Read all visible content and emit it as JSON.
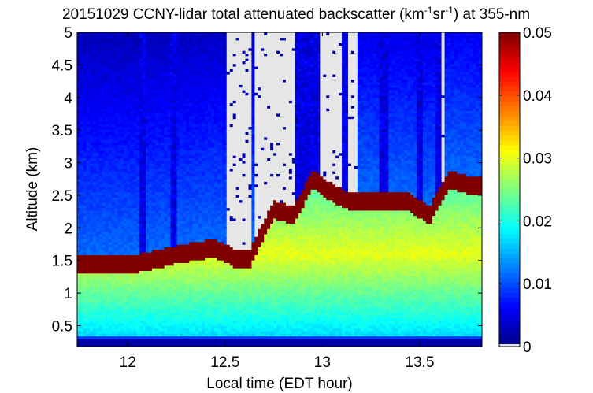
{
  "chart_data": {
    "type": "heatmap",
    "title": "20151029 CCNY-lidar total attenuated backscatter (km",
    "title_sup1": "-1",
    "title_mid": "sr",
    "title_sup2": "-1",
    "title_end": ") at 355-nm",
    "xlabel": "Local time (EDT hour)",
    "ylabel": "Altitude (km)",
    "xlim": [
      11.74,
      13.82
    ],
    "ylim": [
      0.18,
      5.0
    ],
    "xticks": [
      12,
      12.5,
      13,
      13.5
    ],
    "xtick_labels": [
      "12",
      "12.5",
      "13",
      "13.5"
    ],
    "yticks": [
      0.5,
      1,
      1.5,
      2,
      2.5,
      3,
      3.5,
      4,
      4.5,
      5
    ],
    "ytick_labels": [
      "0.5",
      "1",
      "1.5",
      "2",
      "2.5",
      "3",
      "3.5",
      "4",
      "4.5",
      "5"
    ],
    "colorbar": {
      "min": 0,
      "max": 0.05,
      "ticks": [
        0,
        0.01,
        0.02,
        0.03,
        0.04,
        0.05
      ],
      "tick_labels": [
        "0",
        "0.01",
        "0.02",
        "0.03",
        "0.04",
        "0.05"
      ],
      "colormap": "jet",
      "no_data_color": "#e6e6e6"
    },
    "cloud_base_km": [
      {
        "time": 12.05,
        "altitude": 1.32
      },
      {
        "time": 12.25,
        "altitude": 1.45
      },
      {
        "time": 12.35,
        "altitude": 1.5
      },
      {
        "time": 12.45,
        "altitude": 1.55
      },
      {
        "time": 12.55,
        "altitude": 1.4
      },
      {
        "time": 12.63,
        "altitude": 1.4
      },
      {
        "time": 12.75,
        "altitude": 2.15
      },
      {
        "time": 12.85,
        "altitude": 2.05
      },
      {
        "time": 12.95,
        "altitude": 2.6
      },
      {
        "time": 13.05,
        "altitude": 2.4
      },
      {
        "time": 13.15,
        "altitude": 2.25
      },
      {
        "time": 13.45,
        "altitude": 2.25
      },
      {
        "time": 13.55,
        "altitude": 2.05
      },
      {
        "time": 13.65,
        "altitude": 2.6
      },
      {
        "time": 13.78,
        "altitude": 2.5
      }
    ]
  }
}
